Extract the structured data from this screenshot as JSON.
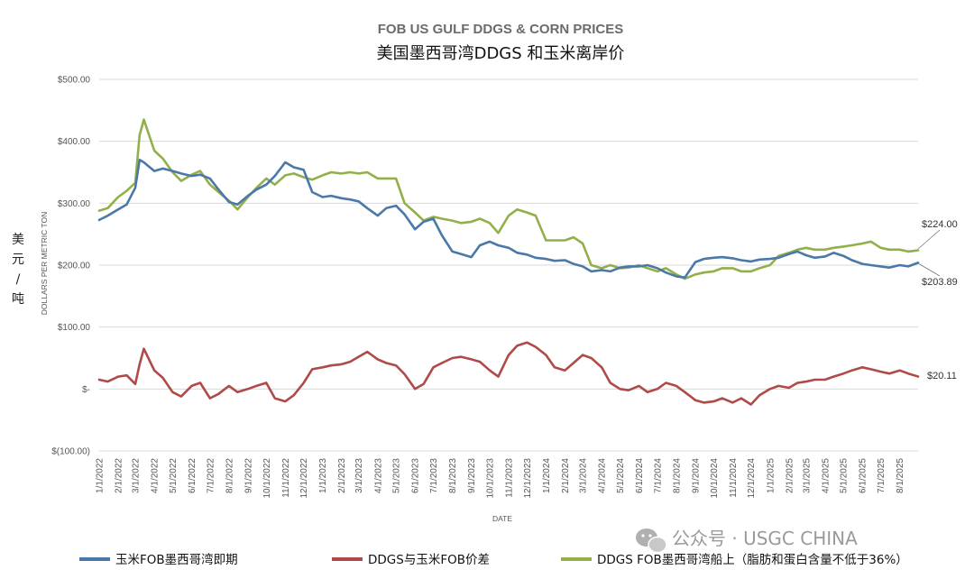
{
  "chart_data": {
    "type": "line",
    "title": "FOB US GULF DDGS & CORN PRICES",
    "subtitle": "美国墨西哥湾DDGS 和玉米离岸价",
    "xlabel": "DATE",
    "ylabel": "DOLLARS PER METRIC TON",
    "unit_label": "美元/吨",
    "ylim": [
      -100,
      500
    ],
    "yticks": [
      500,
      400,
      300,
      200,
      100,
      0,
      -100
    ],
    "ytick_labels": [
      "$500.00",
      "$400.00",
      "$300.00",
      "$200.00",
      "$100.00",
      "$-",
      "$(100.00)"
    ],
    "xticks": [
      "1/1/2022",
      "2/1/2022",
      "3/1/2022",
      "4/1/2022",
      "5/1/2022",
      "6/1/2022",
      "7/1/2022",
      "8/1/2022",
      "9/1/2022",
      "10/1/2022",
      "11/1/2022",
      "12/1/2022",
      "1/1/2023",
      "2/1/2023",
      "3/1/2023",
      "4/1/2023",
      "5/1/2023",
      "6/1/2023",
      "7/1/2023",
      "8/1/2023",
      "9/1/2023",
      "10/1/2023",
      "11/1/2023",
      "12/1/2023",
      "1/1/2024",
      "2/1/2024",
      "3/1/2024",
      "4/1/2024",
      "5/1/2024",
      "6/1/2024",
      "7/1/2024",
      "8/1/2024",
      "9/1/2024",
      "10/1/2024",
      "11/1/2024",
      "12/1/2024",
      "1/1/2025",
      "2/1/2025",
      "3/1/2025",
      "4/1/2025",
      "5/1/2025",
      "6/1/2025",
      "7/1/2025",
      "8/1/2025"
    ],
    "grid": true,
    "legend_position": "bottom",
    "series": [
      {
        "name": "玉米FOB墨西哥湾即期",
        "color": "#4a78a8",
        "x": [
          "2022-01-01",
          "2022-01-15",
          "2022-02-01",
          "2022-02-15",
          "2022-03-01",
          "2022-03-08",
          "2022-03-15",
          "2022-04-01",
          "2022-04-15",
          "2022-05-01",
          "2022-05-15",
          "2022-06-01",
          "2022-06-15",
          "2022-07-01",
          "2022-07-15",
          "2022-08-01",
          "2022-08-15",
          "2022-09-01",
          "2022-09-15",
          "2022-10-01",
          "2022-10-15",
          "2022-11-01",
          "2022-11-15",
          "2022-12-01",
          "2022-12-15",
          "2023-01-01",
          "2023-01-15",
          "2023-02-01",
          "2023-02-15",
          "2023-03-01",
          "2023-03-15",
          "2023-04-01",
          "2023-04-15",
          "2023-05-01",
          "2023-05-15",
          "2023-06-01",
          "2023-06-15",
          "2023-07-01",
          "2023-07-15",
          "2023-08-01",
          "2023-08-15",
          "2023-09-01",
          "2023-09-15",
          "2023-10-01",
          "2023-10-15",
          "2023-11-01",
          "2023-11-15",
          "2023-12-01",
          "2023-12-15",
          "2024-01-01",
          "2024-01-15",
          "2024-02-01",
          "2024-02-15",
          "2024-03-01",
          "2024-03-15",
          "2024-04-01",
          "2024-04-15",
          "2024-05-01",
          "2024-05-15",
          "2024-06-01",
          "2024-06-15",
          "2024-07-01",
          "2024-07-15",
          "2024-08-01",
          "2024-08-15",
          "2024-09-01",
          "2024-09-15",
          "2024-10-01",
          "2024-10-15",
          "2024-11-01",
          "2024-11-15",
          "2024-12-01",
          "2024-12-15",
          "2025-01-01",
          "2025-01-15",
          "2025-02-01",
          "2025-02-15",
          "2025-03-01",
          "2025-03-15",
          "2025-04-01",
          "2025-04-15",
          "2025-05-01",
          "2025-05-15",
          "2025-06-01",
          "2025-06-15",
          "2025-07-01",
          "2025-07-15",
          "2025-08-01",
          "2025-08-15",
          "2025-08-31"
        ],
        "values": [
          273,
          280,
          290,
          298,
          325,
          370,
          366,
          352,
          356,
          352,
          348,
          344,
          346,
          340,
          322,
          302,
          298,
          312,
          322,
          330,
          344,
          366,
          358,
          354,
          318,
          310,
          312,
          308,
          306,
          303,
          292,
          280,
          292,
          296,
          282,
          258,
          270,
          275,
          248,
          222,
          218,
          213,
          232,
          238,
          232,
          228,
          220,
          217,
          212,
          210,
          207,
          208,
          202,
          198,
          190,
          192,
          190,
          196,
          198,
          198,
          200,
          195,
          188,
          182,
          180,
          205,
          210,
          212,
          213,
          211,
          208,
          206,
          209,
          210,
          212,
          218,
          222,
          216,
          212,
          214,
          220,
          215,
          208,
          202,
          200,
          198,
          196,
          200,
          198,
          203.89
        ]
      },
      {
        "name": "DDGS与玉米FOB价差",
        "color": "#b04a48",
        "x": [
          "2022-01-01",
          "2022-01-15",
          "2022-02-01",
          "2022-02-15",
          "2022-03-01",
          "2022-03-08",
          "2022-03-15",
          "2022-04-01",
          "2022-04-15",
          "2022-05-01",
          "2022-05-15",
          "2022-06-01",
          "2022-06-15",
          "2022-07-01",
          "2022-07-15",
          "2022-08-01",
          "2022-08-15",
          "2022-09-01",
          "2022-09-15",
          "2022-10-01",
          "2022-10-15",
          "2022-11-01",
          "2022-11-15",
          "2022-12-01",
          "2022-12-15",
          "2023-01-01",
          "2023-01-15",
          "2023-02-01",
          "2023-02-15",
          "2023-03-01",
          "2023-03-15",
          "2023-04-01",
          "2023-04-15",
          "2023-05-01",
          "2023-05-15",
          "2023-06-01",
          "2023-06-15",
          "2023-07-01",
          "2023-07-15",
          "2023-08-01",
          "2023-08-15",
          "2023-09-01",
          "2023-09-15",
          "2023-10-01",
          "2023-10-15",
          "2023-11-01",
          "2023-11-15",
          "2023-12-01",
          "2023-12-15",
          "2024-01-01",
          "2024-01-15",
          "2024-02-01",
          "2024-02-15",
          "2024-03-01",
          "2024-03-15",
          "2024-04-01",
          "2024-04-15",
          "2024-05-01",
          "2024-05-15",
          "2024-06-01",
          "2024-06-15",
          "2024-07-01",
          "2024-07-15",
          "2024-08-01",
          "2024-08-15",
          "2024-09-01",
          "2024-09-15",
          "2024-10-01",
          "2024-10-15",
          "2024-11-01",
          "2024-11-15",
          "2024-12-01",
          "2024-12-15",
          "2025-01-01",
          "2025-01-15",
          "2025-02-01",
          "2025-02-15",
          "2025-03-01",
          "2025-03-15",
          "2025-04-01",
          "2025-04-15",
          "2025-05-01",
          "2025-05-15",
          "2025-06-01",
          "2025-06-15",
          "2025-07-01",
          "2025-07-15",
          "2025-08-01",
          "2025-08-15",
          "2025-08-31"
        ],
        "values": [
          15,
          12,
          20,
          22,
          8,
          40,
          65,
          30,
          18,
          -5,
          -12,
          5,
          10,
          -15,
          -8,
          5,
          -5,
          0,
          5,
          10,
          -15,
          -20,
          -10,
          10,
          32,
          35,
          38,
          40,
          44,
          52,
          60,
          48,
          42,
          38,
          24,
          0,
          8,
          35,
          42,
          50,
          52,
          48,
          44,
          30,
          20,
          55,
          70,
          75,
          68,
          55,
          35,
          30,
          42,
          55,
          50,
          35,
          10,
          0,
          -2,
          5,
          -5,
          0,
          10,
          5,
          -5,
          -18,
          -22,
          -20,
          -15,
          -22,
          -15,
          -25,
          -10,
          0,
          5,
          2,
          10,
          12,
          15,
          15,
          20,
          25,
          30,
          35,
          32,
          28,
          25,
          30,
          25,
          20.11
        ]
      },
      {
        "name": "DDGS FOB墨西哥湾船上（脂肪和蛋白含量不低于36%）",
        "color": "#92b04a",
        "x": [
          "2022-01-01",
          "2022-01-15",
          "2022-02-01",
          "2022-02-15",
          "2022-03-01",
          "2022-03-08",
          "2022-03-15",
          "2022-04-01",
          "2022-04-15",
          "2022-05-01",
          "2022-05-15",
          "2022-06-01",
          "2022-06-15",
          "2022-07-01",
          "2022-07-15",
          "2022-08-01",
          "2022-08-15",
          "2022-09-01",
          "2022-09-15",
          "2022-10-01",
          "2022-10-15",
          "2022-11-01",
          "2022-11-15",
          "2022-12-01",
          "2022-12-15",
          "2023-01-01",
          "2023-01-15",
          "2023-02-01",
          "2023-02-15",
          "2023-03-01",
          "2023-03-15",
          "2023-04-01",
          "2023-04-15",
          "2023-05-01",
          "2023-05-15",
          "2023-06-01",
          "2023-06-15",
          "2023-07-01",
          "2023-07-15",
          "2023-08-01",
          "2023-08-15",
          "2023-09-01",
          "2023-09-15",
          "2023-10-01",
          "2023-10-15",
          "2023-11-01",
          "2023-11-15",
          "2023-12-01",
          "2023-12-15",
          "2024-01-01",
          "2024-01-15",
          "2024-02-01",
          "2024-02-15",
          "2024-03-01",
          "2024-03-15",
          "2024-04-01",
          "2024-04-15",
          "2024-05-01",
          "2024-05-15",
          "2024-06-01",
          "2024-06-15",
          "2024-07-01",
          "2024-07-15",
          "2024-08-01",
          "2024-08-15",
          "2024-09-01",
          "2024-09-15",
          "2024-10-01",
          "2024-10-15",
          "2024-11-01",
          "2024-11-15",
          "2024-12-01",
          "2024-12-15",
          "2025-01-01",
          "2025-01-15",
          "2025-02-01",
          "2025-02-15",
          "2025-03-01",
          "2025-03-15",
          "2025-04-01",
          "2025-04-15",
          "2025-05-01",
          "2025-05-15",
          "2025-06-01",
          "2025-06-15",
          "2025-07-01",
          "2025-07-15",
          "2025-08-01",
          "2025-08-15",
          "2025-08-31"
        ],
        "values": [
          288,
          292,
          310,
          320,
          333,
          410,
          435,
          385,
          372,
          350,
          336,
          346,
          352,
          330,
          318,
          304,
          290,
          310,
          325,
          340,
          330,
          345,
          348,
          342,
          338,
          345,
          350,
          348,
          350,
          348,
          350,
          340,
          340,
          340,
          300,
          285,
          272,
          278,
          275,
          272,
          268,
          270,
          275,
          268,
          252,
          280,
          290,
          285,
          280,
          240,
          240,
          240,
          245,
          235,
          200,
          195,
          200,
          195,
          196,
          200,
          195,
          190,
          195,
          185,
          178,
          185,
          188,
          190,
          195,
          195,
          190,
          190,
          195,
          200,
          215,
          220,
          225,
          228,
          225,
          225,
          228,
          230,
          232,
          235,
          238,
          228,
          225,
          225,
          222,
          224
        ]
      }
    ],
    "end_labels": [
      "$224.00",
      "$203.89",
      "$20.11"
    ]
  },
  "legend": {
    "items": [
      {
        "label": "玉米FOB墨西哥湾即期",
        "color": "#4a78a8"
      },
      {
        "label": "DDGS与玉米FOB价差",
        "color": "#b04a48"
      },
      {
        "label": "DDGS FOB墨西哥湾船上（脂肪和蛋白含量不低于36%）",
        "color": "#92b04a"
      }
    ]
  },
  "watermark": {
    "text": "公众号 · USGC CHINA",
    "icon": "wechat-icon"
  }
}
